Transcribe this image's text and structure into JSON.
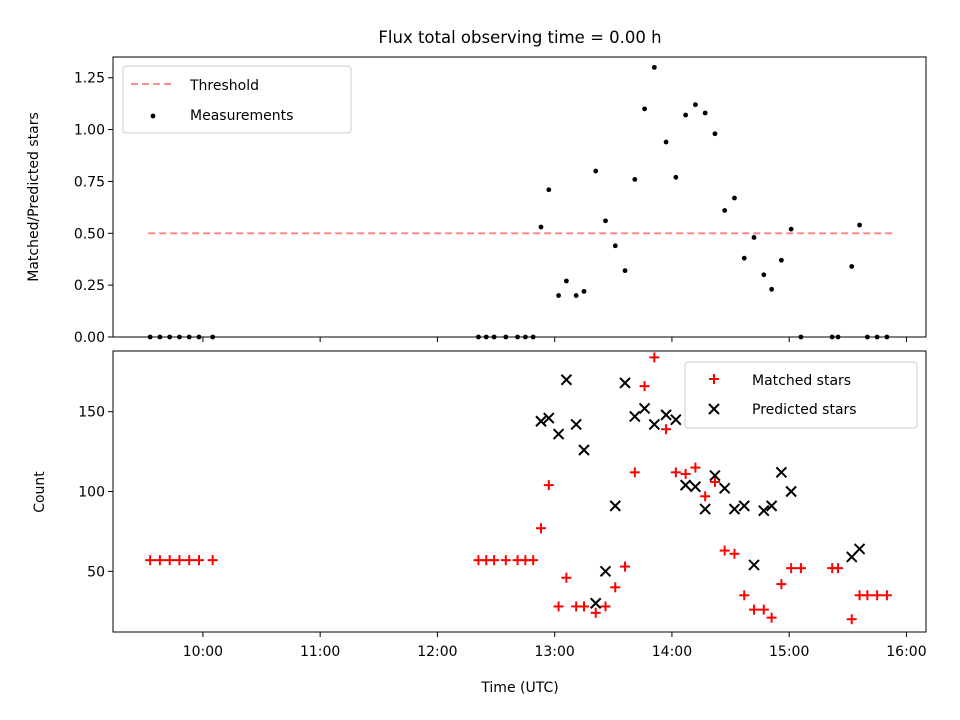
{
  "chart_data": [
    {
      "type": "scatter",
      "title": "Flux total observing time = 0.00 h",
      "xlabel": "",
      "ylabel": "Matched/Predicted stars",
      "xlim": [
        "09:14",
        "16:10"
      ],
      "ylim": [
        0,
        1.35
      ],
      "yticks": [
        0.0,
        0.25,
        0.5,
        0.75,
        1.0,
        1.25
      ],
      "ytick_labels": [
        "0.00",
        "0.25",
        "0.50",
        "0.75",
        "1.00",
        "1.25"
      ],
      "xticks": [
        "10:00",
        "11:00",
        "12:00",
        "13:00",
        "14:00",
        "15:00",
        "16:00"
      ],
      "show_xtick_labels": false,
      "grid": false,
      "legend_position": "upper-left",
      "threshold": {
        "name": "Threshold",
        "value": 0.5,
        "x_start": "09:32",
        "x_end": "15:53",
        "color": "#ff8080",
        "style": "dashed"
      },
      "series": [
        {
          "name": "Measurements",
          "marker": "dot",
          "color": "#000000",
          "points": [
            {
              "x": "09:33",
              "y": 0.0
            },
            {
              "x": "09:38",
              "y": 0.0
            },
            {
              "x": "09:43",
              "y": 0.0
            },
            {
              "x": "09:48",
              "y": 0.0
            },
            {
              "x": "09:53",
              "y": 0.0
            },
            {
              "x": "09:58",
              "y": 0.0
            },
            {
              "x": "10:05",
              "y": 0.0
            },
            {
              "x": "12:21",
              "y": 0.0
            },
            {
              "x": "12:25",
              "y": 0.0
            },
            {
              "x": "12:29",
              "y": 0.0
            },
            {
              "x": "12:35",
              "y": 0.0
            },
            {
              "x": "12:41",
              "y": 0.0
            },
            {
              "x": "12:45",
              "y": 0.0
            },
            {
              "x": "12:49",
              "y": 0.0
            },
            {
              "x": "12:53",
              "y": 0.53
            },
            {
              "x": "12:57",
              "y": 0.71
            },
            {
              "x": "13:02",
              "y": 0.2
            },
            {
              "x": "13:06",
              "y": 0.27
            },
            {
              "x": "13:11",
              "y": 0.2
            },
            {
              "x": "13:15",
              "y": 0.22
            },
            {
              "x": "13:21",
              "y": 0.8
            },
            {
              "x": "13:26",
              "y": 0.56
            },
            {
              "x": "13:31",
              "y": 0.44
            },
            {
              "x": "13:36",
              "y": 0.32
            },
            {
              "x": "13:41",
              "y": 0.76
            },
            {
              "x": "13:46",
              "y": 1.1
            },
            {
              "x": "13:51",
              "y": 1.3
            },
            {
              "x": "13:57",
              "y": 0.94
            },
            {
              "x": "14:02",
              "y": 0.77
            },
            {
              "x": "14:07",
              "y": 1.07
            },
            {
              "x": "14:12",
              "y": 1.12
            },
            {
              "x": "14:17",
              "y": 1.08
            },
            {
              "x": "14:22",
              "y": 0.98
            },
            {
              "x": "14:27",
              "y": 0.61
            },
            {
              "x": "14:32",
              "y": 0.67
            },
            {
              "x": "14:37",
              "y": 0.38
            },
            {
              "x": "14:42",
              "y": 0.48
            },
            {
              "x": "14:47",
              "y": 0.3
            },
            {
              "x": "14:51",
              "y": 0.23
            },
            {
              "x": "14:56",
              "y": 0.37
            },
            {
              "x": "15:01",
              "y": 0.52
            },
            {
              "x": "15:06",
              "y": 0.0
            },
            {
              "x": "15:22",
              "y": 0.0
            },
            {
              "x": "15:25",
              "y": 0.0
            },
            {
              "x": "15:32",
              "y": 0.34
            },
            {
              "x": "15:36",
              "y": 0.54
            },
            {
              "x": "15:40",
              "y": 0.0
            },
            {
              "x": "15:45",
              "y": 0.0
            },
            {
              "x": "15:50",
              "y": 0.0
            }
          ]
        }
      ]
    },
    {
      "type": "scatter",
      "title": "",
      "xlabel": "Time (UTC)",
      "ylabel": "Count",
      "xlim": [
        "09:14",
        "16:10"
      ],
      "ylim": [
        12,
        188
      ],
      "yticks": [
        50,
        100,
        150
      ],
      "ytick_labels": [
        "50",
        "100",
        "150"
      ],
      "xticks": [
        "10:00",
        "11:00",
        "12:00",
        "13:00",
        "14:00",
        "15:00",
        "16:00"
      ],
      "xtick_labels": [
        "10:00",
        "11:00",
        "12:00",
        "13:00",
        "14:00",
        "15:00",
        "16:00"
      ],
      "show_xtick_labels": true,
      "grid": false,
      "legend_position": "upper-right",
      "series": [
        {
          "name": "Matched stars",
          "marker": "plus",
          "color": "#ff0000",
          "points": [
            {
              "x": "09:33",
              "y": 57
            },
            {
              "x": "09:38",
              "y": 57
            },
            {
              "x": "09:43",
              "y": 57
            },
            {
              "x": "09:48",
              "y": 57
            },
            {
              "x": "09:53",
              "y": 57
            },
            {
              "x": "09:58",
              "y": 57
            },
            {
              "x": "10:05",
              "y": 57
            },
            {
              "x": "12:21",
              "y": 57
            },
            {
              "x": "12:25",
              "y": 57
            },
            {
              "x": "12:29",
              "y": 57
            },
            {
              "x": "12:35",
              "y": 57
            },
            {
              "x": "12:41",
              "y": 57
            },
            {
              "x": "12:45",
              "y": 57
            },
            {
              "x": "12:49",
              "y": 57
            },
            {
              "x": "12:53",
              "y": 77
            },
            {
              "x": "12:57",
              "y": 104
            },
            {
              "x": "13:02",
              "y": 28
            },
            {
              "x": "13:06",
              "y": 46
            },
            {
              "x": "13:11",
              "y": 28
            },
            {
              "x": "13:15",
              "y": 28
            },
            {
              "x": "13:21",
              "y": 24
            },
            {
              "x": "13:26",
              "y": 28
            },
            {
              "x": "13:31",
              "y": 40
            },
            {
              "x": "13:36",
              "y": 53
            },
            {
              "x": "13:41",
              "y": 112
            },
            {
              "x": "13:46",
              "y": 166
            },
            {
              "x": "13:51",
              "y": 184
            },
            {
              "x": "13:57",
              "y": 139
            },
            {
              "x": "14:02",
              "y": 112
            },
            {
              "x": "14:07",
              "y": 111
            },
            {
              "x": "14:12",
              "y": 115
            },
            {
              "x": "14:17",
              "y": 97
            },
            {
              "x": "14:22",
              "y": 106
            },
            {
              "x": "14:27",
              "y": 63
            },
            {
              "x": "14:32",
              "y": 61
            },
            {
              "x": "14:37",
              "y": 35
            },
            {
              "x": "14:42",
              "y": 26
            },
            {
              "x": "14:47",
              "y": 26
            },
            {
              "x": "14:51",
              "y": 21
            },
            {
              "x": "14:56",
              "y": 42
            },
            {
              "x": "15:01",
              "y": 52
            },
            {
              "x": "15:06",
              "y": 52
            },
            {
              "x": "15:22",
              "y": 52
            },
            {
              "x": "15:25",
              "y": 52
            },
            {
              "x": "15:32",
              "y": 20
            },
            {
              "x": "15:36",
              "y": 35
            },
            {
              "x": "15:40",
              "y": 35
            },
            {
              "x": "15:45",
              "y": 35
            },
            {
              "x": "15:50",
              "y": 35
            }
          ]
        },
        {
          "name": "Predicted stars",
          "marker": "x",
          "color": "#000000",
          "points": [
            {
              "x": "12:53",
              "y": 144
            },
            {
              "x": "12:57",
              "y": 146
            },
            {
              "x": "13:02",
              "y": 136
            },
            {
              "x": "13:06",
              "y": 170
            },
            {
              "x": "13:11",
              "y": 142
            },
            {
              "x": "13:15",
              "y": 126
            },
            {
              "x": "13:21",
              "y": 30
            },
            {
              "x": "13:26",
              "y": 50
            },
            {
              "x": "13:31",
              "y": 91
            },
            {
              "x": "13:36",
              "y": 168
            },
            {
              "x": "13:41",
              "y": 147
            },
            {
              "x": "13:46",
              "y": 152
            },
            {
              "x": "13:51",
              "y": 142
            },
            {
              "x": "13:57",
              "y": 148
            },
            {
              "x": "14:02",
              "y": 145
            },
            {
              "x": "14:07",
              "y": 104
            },
            {
              "x": "14:12",
              "y": 103
            },
            {
              "x": "14:17",
              "y": 89
            },
            {
              "x": "14:22",
              "y": 110
            },
            {
              "x": "14:27",
              "y": 102
            },
            {
              "x": "14:32",
              "y": 89
            },
            {
              "x": "14:37",
              "y": 91
            },
            {
              "x": "14:42",
              "y": 54
            },
            {
              "x": "14:47",
              "y": 88
            },
            {
              "x": "14:51",
              "y": 91
            },
            {
              "x": "14:56",
              "y": 112
            },
            {
              "x": "15:01",
              "y": 100
            },
            {
              "x": "15:32",
              "y": 59
            },
            {
              "x": "15:36",
              "y": 64
            }
          ]
        }
      ]
    }
  ]
}
